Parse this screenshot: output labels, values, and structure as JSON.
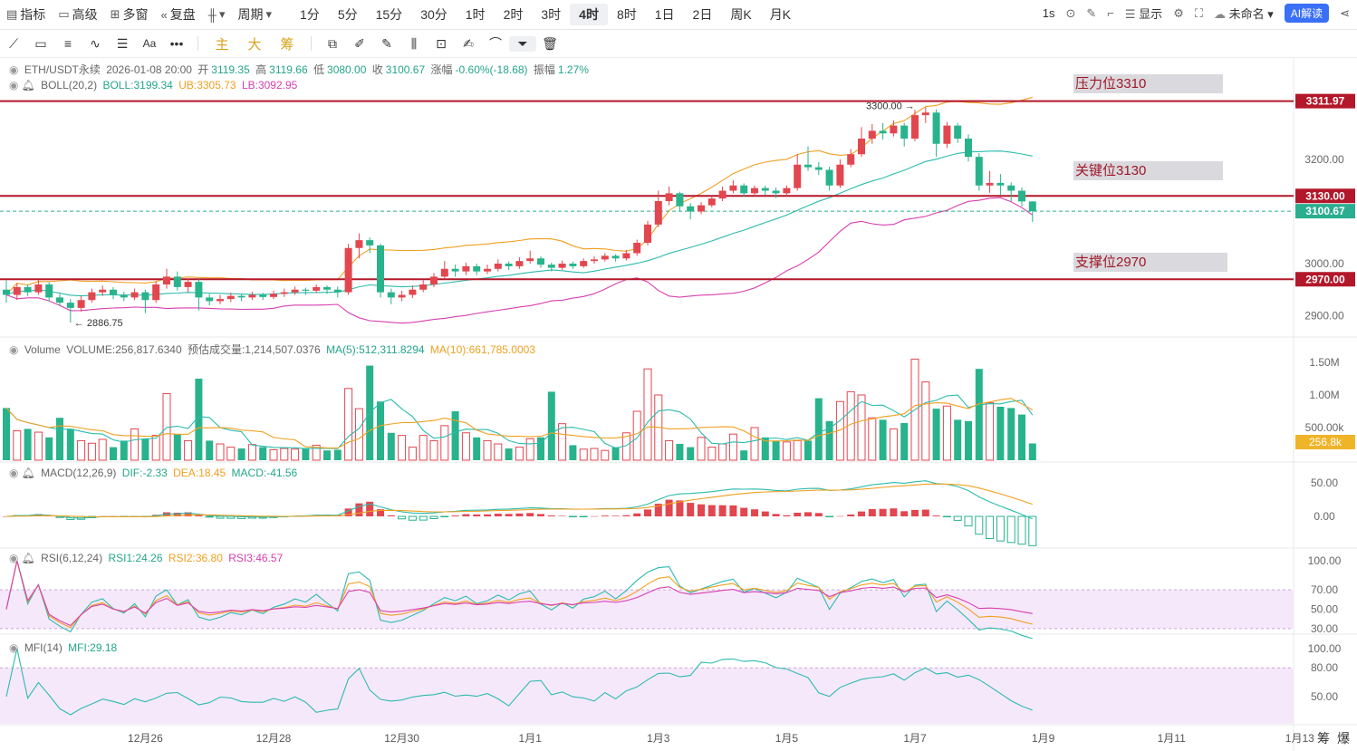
{
  "toolbar": {
    "indicators": "指标",
    "advanced": "高级",
    "multi_window": "多窗",
    "replay": "复盘",
    "period": "周期",
    "intervals": [
      "1分",
      "5分",
      "15分",
      "30分",
      "1时",
      "2时",
      "3时",
      "4时",
      "8时",
      "1日",
      "2日",
      "周K",
      "月K"
    ],
    "active_interval": "4时",
    "speed": "1s",
    "display": "显示",
    "layout_name": "未命名",
    "ai_label": "AI解读"
  },
  "drawbar": {
    "main": "主",
    "big": "大",
    "chips": "筹",
    "text_tool": "Aa"
  },
  "legend": {
    "price": {
      "symbol": "ETH/USDT永续",
      "time": "2026-01-08 20:00",
      "open_label": "开",
      "open": "3119.35",
      "high_label": "高",
      "high": "3119.66",
      "low_label": "低",
      "low": "3080.00",
      "close_label": "收",
      "close": "3100.67",
      "change_label": "涨幅",
      "change": "-0.60%(-18.68)",
      "amplitude_label": "振幅",
      "amplitude": "1.27%"
    },
    "boll": {
      "name": "BOLL(20,2)",
      "mid": "BOLL:3199.34",
      "ub": "UB:3305.73",
      "lb": "LB:3092.95"
    },
    "volume": {
      "name": "Volume",
      "vol": "VOLUME:256,817.6340",
      "est": "预估成交量:1,214,507.0376",
      "ma5": "MA(5):512,311.8294",
      "ma10": "MA(10):661,785.0003"
    },
    "macd": {
      "name": "MACD(12,26,9)",
      "dif": "DIF:-2.33",
      "dea": "DEA:18.45",
      "macd": "MACD:-41.56"
    },
    "rsi": {
      "name": "RSI(6,12,24)",
      "rsi1": "RSI1:24.26",
      "rsi2": "RSI2:36.80",
      "rsi3": "RSI3:46.57"
    },
    "mfi": {
      "name": "MFI(14)",
      "mfi": "MFI:29.18"
    }
  },
  "annotations": {
    "resistance": "压力位3310",
    "key": "关键位3130",
    "support": "支撑位2970"
  },
  "footer": {
    "chips": "筹",
    "liq": "爆"
  },
  "colors": {
    "up": "#e2464f",
    "down": "#28b38c",
    "level": "#b3172a",
    "last": "#2bae8f",
    "boll_mid": "#2bbbad",
    "boll_ub": "#f0a020",
    "boll_lb": "#d83fb0"
  },
  "chart_data": {
    "type": "bar",
    "subtype": "candlestick",
    "interval": "4时",
    "candles_format": [
      "open",
      "high",
      "low",
      "close"
    ],
    "candles": [
      [
        2950,
        2968,
        2925,
        2940
      ],
      [
        2940,
        2962,
        2930,
        2955
      ],
      [
        2955,
        2960,
        2938,
        2945
      ],
      [
        2945,
        2968,
        2940,
        2960
      ],
      [
        2960,
        2964,
        2928,
        2935
      ],
      [
        2935,
        2942,
        2918,
        2925
      ],
      [
        2925,
        2932,
        2886.75,
        2915
      ],
      [
        2915,
        2938,
        2908,
        2930
      ],
      [
        2930,
        2952,
        2925,
        2945
      ],
      [
        2945,
        2958,
        2938,
        2950
      ],
      [
        2950,
        2955,
        2932,
        2940
      ],
      [
        2940,
        2946,
        2928,
        2935
      ],
      [
        2935,
        2952,
        2930,
        2945
      ],
      [
        2945,
        2950,
        2905,
        2930
      ],
      [
        2930,
        2966,
        2925,
        2960
      ],
      [
        2960,
        2990,
        2952,
        2975
      ],
      [
        2975,
        2985,
        2948,
        2955
      ],
      [
        2955,
        2972,
        2945,
        2965
      ],
      [
        2965,
        2970,
        2910,
        2935
      ],
      [
        2935,
        2942,
        2920,
        2928
      ],
      [
        2928,
        2940,
        2922,
        2932
      ],
      [
        2932,
        2944,
        2926,
        2938
      ],
      [
        2938,
        2942,
        2928,
        2935
      ],
      [
        2935,
        2946,
        2930,
        2940
      ],
      [
        2940,
        2944,
        2930,
        2936
      ],
      [
        2936,
        2948,
        2932,
        2942
      ],
      [
        2942,
        2952,
        2936,
        2945
      ],
      [
        2945,
        2956,
        2940,
        2950
      ],
      [
        2950,
        2954,
        2940,
        2948
      ],
      [
        2948,
        2960,
        2944,
        2955
      ],
      [
        2955,
        2958,
        2942,
        2950
      ],
      [
        2950,
        2956,
        2935,
        2945
      ],
      [
        2945,
        3038,
        2940,
        3030
      ],
      [
        3030,
        3058,
        3010,
        3045
      ],
      [
        3045,
        3050,
        3020,
        3035
      ],
      [
        3035,
        3038,
        2935,
        2945
      ],
      [
        2945,
        2952,
        2922,
        2935
      ],
      [
        2935,
        2948,
        2928,
        2940
      ],
      [
        2940,
        2958,
        2934,
        2950
      ],
      [
        2950,
        2968,
        2945,
        2960
      ],
      [
        2960,
        2982,
        2955,
        2975
      ],
      [
        2975,
        3005,
        2970,
        2990
      ],
      [
        2990,
        2998,
        2975,
        2985
      ],
      [
        2985,
        3002,
        2978,
        2995
      ],
      [
        2995,
        3000,
        2978,
        2985
      ],
      [
        2985,
        2998,
        2980,
        2990
      ],
      [
        2990,
        3008,
        2985,
        3000
      ],
      [
        3000,
        3004,
        2988,
        2995
      ],
      [
        2995,
        3012,
        2990,
        3005
      ],
      [
        3005,
        3025,
        3000,
        3010
      ],
      [
        3010,
        3014,
        2992,
        2998
      ],
      [
        2998,
        3002,
        2985,
        2992
      ],
      [
        2992,
        3006,
        2988,
        3000
      ],
      [
        3000,
        3004,
        2990,
        2995
      ],
      [
        2995,
        3010,
        2992,
        3005
      ],
      [
        3005,
        3014,
        3000,
        3008
      ],
      [
        3008,
        3020,
        3004,
        3015
      ],
      [
        3015,
        3018,
        3004,
        3010
      ],
      [
        3010,
        3026,
        3006,
        3020
      ],
      [
        3020,
        3046,
        3015,
        3040
      ],
      [
        3040,
        3082,
        3035,
        3075
      ],
      [
        3075,
        3140,
        3070,
        3120
      ],
      [
        3120,
        3148,
        3112,
        3135
      ],
      [
        3135,
        3138,
        3100,
        3110
      ],
      [
        3110,
        3116,
        3085,
        3100
      ],
      [
        3100,
        3118,
        3095,
        3112
      ],
      [
        3112,
        3130,
        3108,
        3125
      ],
      [
        3125,
        3148,
        3120,
        3140
      ],
      [
        3140,
        3160,
        3135,
        3150
      ],
      [
        3150,
        3154,
        3128,
        3135
      ],
      [
        3135,
        3150,
        3130,
        3145
      ],
      [
        3145,
        3150,
        3132,
        3140
      ],
      [
        3140,
        3146,
        3126,
        3135
      ],
      [
        3135,
        3150,
        3130,
        3145
      ],
      [
        3145,
        3210,
        3140,
        3190
      ],
      [
        3190,
        3225,
        3178,
        3185
      ],
      [
        3185,
        3195,
        3170,
        3180
      ],
      [
        3180,
        3186,
        3140,
        3150
      ],
      [
        3150,
        3200,
        3145,
        3190
      ],
      [
        3190,
        3220,
        3185,
        3210
      ],
      [
        3210,
        3262,
        3205,
        3240
      ],
      [
        3240,
        3268,
        3230,
        3255
      ],
      [
        3255,
        3270,
        3238,
        3250
      ],
      [
        3250,
        3275,
        3244,
        3265
      ],
      [
        3265,
        3270,
        3225,
        3240
      ],
      [
        3240,
        3295,
        3235,
        3285
      ],
      [
        3285,
        3300,
        3270,
        3290
      ],
      [
        3290,
        3296,
        3205,
        3230
      ],
      [
        3230,
        3272,
        3222,
        3265
      ],
      [
        3265,
        3270,
        3232,
        3240
      ],
      [
        3240,
        3248,
        3196,
        3205
      ],
      [
        3205,
        3212,
        3140,
        3150
      ],
      [
        3150,
        3178,
        3136,
        3155
      ],
      [
        3155,
        3172,
        3132,
        3150
      ],
      [
        3150,
        3156,
        3120,
        3140
      ],
      [
        3140,
        3146,
        3110,
        3119.35
      ],
      [
        3119.35,
        3119.66,
        3080,
        3100.67
      ]
    ],
    "volume": [
      800000,
      450000,
      480000,
      430000,
      350000,
      650000,
      480000,
      300000,
      260000,
      320000,
      200000,
      300000,
      480000,
      330000,
      380000,
      1020000,
      400000,
      300000,
      1250000,
      300000,
      250000,
      200000,
      180000,
      240000,
      200000,
      160000,
      180000,
      170000,
      180000,
      230000,
      150000,
      160000,
      1100000,
      790000,
      1450000,
      900000,
      420000,
      380000,
      200000,
      380000,
      300000,
      530000,
      750000,
      420000,
      350000,
      300000,
      250000,
      180000,
      200000,
      330000,
      350000,
      1050000,
      560000,
      230000,
      170000,
      180000,
      150000,
      200000,
      420000,
      750000,
      1400000,
      1000000,
      300000,
      250000,
      200000,
      350000,
      200000,
      250000,
      400000,
      150000,
      500000,
      350000,
      300000,
      280000,
      300000,
      300000,
      950000,
      600000,
      900000,
      1050000,
      1000000,
      650000,
      620000,
      480000,
      570000,
      1550000,
      1200000,
      790000,
      830000,
      620000,
      600000,
      1400000,
      880000,
      820000,
      800000,
      700000,
      256817.634
    ],
    "high_marker": {
      "value": 3300.0,
      "label": "3300.00"
    },
    "low_marker": {
      "value": 2886.75,
      "label": "2886.75"
    },
    "levels": [
      {
        "value": 3311.97,
        "label": "3311.97",
        "kind": "level"
      },
      {
        "value": 3130.0,
        "label": "3130.00",
        "kind": "level"
      },
      {
        "value": 2970.0,
        "label": "2970.00",
        "kind": "level"
      },
      {
        "value": 3100.67,
        "label": "3100.67",
        "kind": "last"
      }
    ],
    "price_ticks": [
      {
        "value": 3200,
        "label": "3200.00"
      },
      {
        "value": 3000,
        "label": "3000.00"
      },
      {
        "value": 2900,
        "label": "2900.00"
      }
    ],
    "volume_ticks": [
      {
        "value": 1500000,
        "label": "1.50M"
      },
      {
        "value": 1000000,
        "label": "1.00M"
      },
      {
        "value": 500000,
        "label": "500.00k"
      }
    ],
    "volume_last_label": "256.8k",
    "macd_ticks": [
      {
        "value": 50,
        "label": "50.00"
      },
      {
        "value": 0,
        "label": "0.00"
      }
    ],
    "rsi_ticks": [
      {
        "value": 100,
        "label": "100.00"
      },
      {
        "value": 70,
        "label": "70.00"
      },
      {
        "value": 50,
        "label": "50.00"
      },
      {
        "value": 30,
        "label": "30.00"
      }
    ],
    "rsi_band": [
      30,
      70
    ],
    "mfi_ticks": [
      {
        "value": 100,
        "label": "100.00"
      },
      {
        "value": 80,
        "label": "80.00"
      },
      {
        "value": 50,
        "label": "50.00"
      }
    ],
    "mfi_band": [
      20,
      80
    ],
    "x_labels": [
      {
        "index": 13,
        "label": "12月26"
      },
      {
        "index": 25,
        "label": "12月28"
      },
      {
        "index": 37,
        "label": "12月30"
      },
      {
        "index": 49,
        "label": "1月1"
      },
      {
        "index": 61,
        "label": "1月3"
      },
      {
        "index": 73,
        "label": "1月5"
      },
      {
        "index": 85,
        "label": "1月7"
      },
      {
        "index": 97,
        "label": "1月9"
      },
      {
        "index": 109,
        "label": "1月11"
      },
      {
        "index": 121,
        "label": "1月13"
      }
    ]
  }
}
